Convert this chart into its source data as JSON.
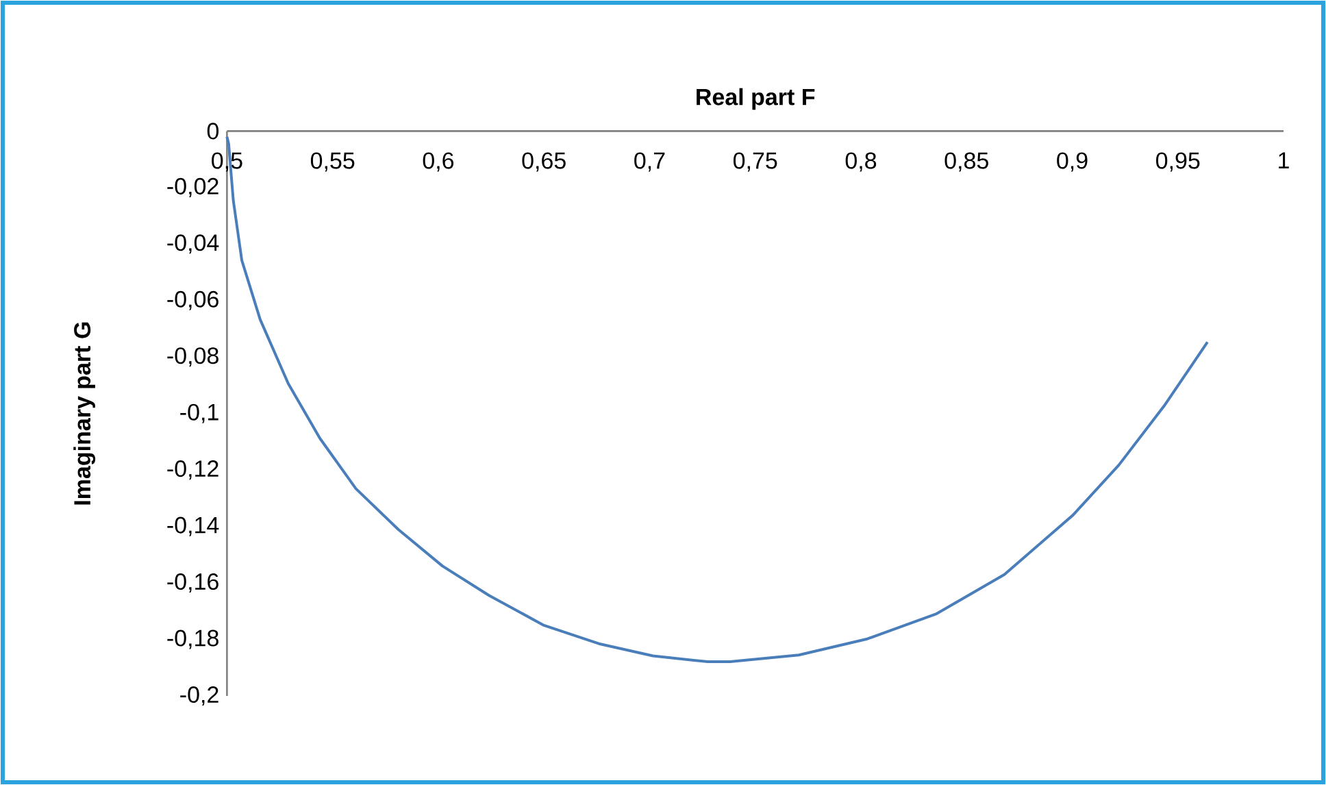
{
  "chart_data": {
    "type": "line",
    "xlabel": "Real part F",
    "ylabel": "Imaginary part G",
    "color": "#4a7ebb",
    "x": [
      0.5,
      0.5008,
      0.503,
      0.507,
      0.5157,
      0.529,
      0.544,
      0.561,
      0.581,
      0.602,
      0.624,
      0.65,
      0.676,
      0.7016,
      0.7275,
      0.738,
      0.7706,
      0.803,
      0.8355,
      0.8679,
      0.9003,
      0.922,
      0.9435,
      0.964
    ],
    "values": [
      -0.002,
      -0.0045,
      -0.0246,
      -0.0457,
      -0.0667,
      -0.0894,
      -0.1088,
      -0.1266,
      -0.141,
      -0.154,
      -0.1644,
      -0.175,
      -0.1815,
      -0.1858,
      -0.1879,
      -0.1879,
      -0.1855,
      -0.1798,
      -0.171,
      -0.157,
      -0.136,
      -0.1183,
      -0.0973,
      -0.0747
    ],
    "xlim": [
      0.5,
      1
    ],
    "ylim": [
      -0.2,
      0
    ],
    "xticks": [
      {
        "value": 0.5,
        "label": "0,5"
      },
      {
        "value": 0.55,
        "label": "0,55"
      },
      {
        "value": 0.6,
        "label": "0,6"
      },
      {
        "value": 0.65,
        "label": "0,65"
      },
      {
        "value": 0.7,
        "label": "0,7"
      },
      {
        "value": 0.75,
        "label": "0,75"
      },
      {
        "value": 0.8,
        "label": "0,8"
      },
      {
        "value": 0.85,
        "label": "0,85"
      },
      {
        "value": 0.9,
        "label": "0,9"
      },
      {
        "value": 0.95,
        "label": "0,95"
      },
      {
        "value": 1,
        "label": "1"
      }
    ],
    "yticks": [
      0,
      {
        "value": -0.02,
        "label": "-0,02"
      },
      {
        "value": -0.04,
        "label": "-0,04"
      },
      {
        "value": -0.06,
        "label": "-0,06"
      },
      {
        "value": -0.08,
        "label": "-0,08"
      },
      {
        "value": -0.1,
        "label": "-0,1"
      },
      {
        "value": -0.12,
        "label": "-0,12"
      },
      {
        "value": -0.14,
        "label": "-0,14"
      },
      {
        "value": -0.16,
        "label": "-0,16"
      },
      {
        "value": -0.18,
        "label": "-0,18"
      },
      {
        "value": -0.2,
        "label": "-0,2"
      }
    ]
  }
}
